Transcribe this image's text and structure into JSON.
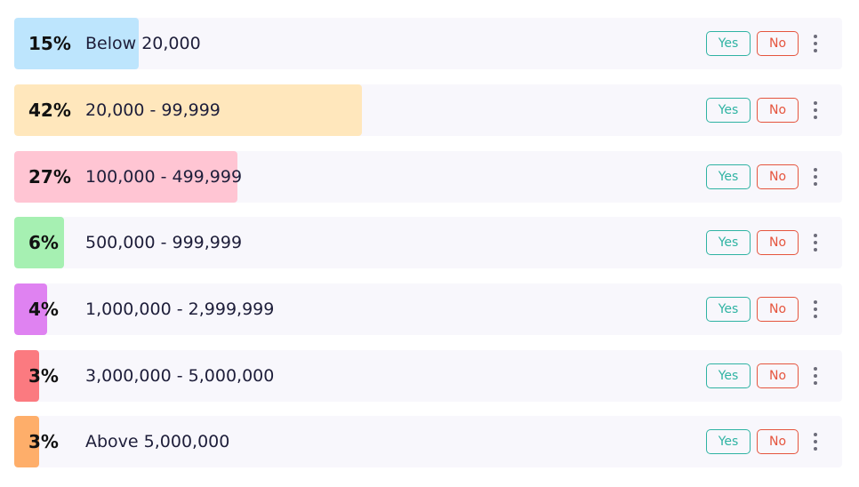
{
  "options": [
    {
      "percent": "15%",
      "fraction": 0.15,
      "label": "Below 20,000",
      "color": "#bde5fd",
      "yes": "Yes",
      "no": "No"
    },
    {
      "percent": "42%",
      "fraction": 0.42,
      "label": "20,000 - 99,999",
      "color": "#ffe7bc",
      "yes": "Yes",
      "no": "No"
    },
    {
      "percent": "27%",
      "fraction": 0.27,
      "label": "100,000 - 499,999",
      "color": "#ffc5d3",
      "yes": "Yes",
      "no": "No"
    },
    {
      "percent": "6%",
      "fraction": 0.06,
      "label": "500,000 - 999,999",
      "color": "#a6f0b2",
      "yes": "Yes",
      "no": "No"
    },
    {
      "percent": "4%",
      "fraction": 0.04,
      "label": "1,000,000 - 2,999,999",
      "color": "#df82f1",
      "yes": "Yes",
      "no": "No"
    },
    {
      "percent": "3%",
      "fraction": 0.03,
      "label": "3,000,000 - 5,000,000",
      "color": "#fb7a80",
      "yes": "Yes",
      "no": "No"
    },
    {
      "percent": "3%",
      "fraction": 0.03,
      "label": "Above 5,000,000",
      "color": "#feae6a",
      "yes": "Yes",
      "no": "No"
    }
  ]
}
